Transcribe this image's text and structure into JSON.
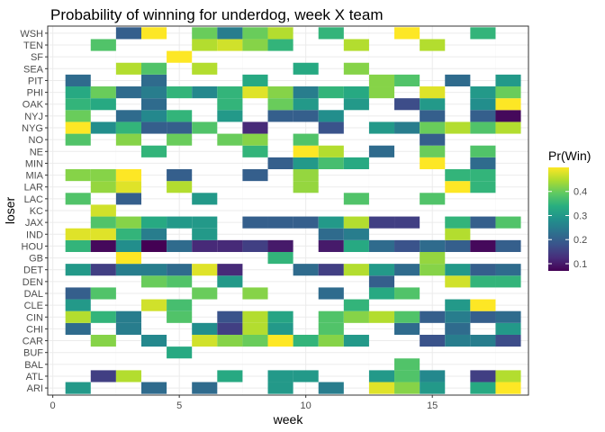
{
  "chart_data": {
    "type": "heatmap",
    "title": "Probability of winning for underdog, week X team",
    "xlabel": "week",
    "ylabel": "loser",
    "xlim": [
      -0.2,
      18.8
    ],
    "x_ticks": [
      0,
      5,
      10,
      15
    ],
    "weeks": [
      1,
      2,
      3,
      4,
      5,
      6,
      7,
      8,
      9,
      10,
      11,
      12,
      13,
      14,
      15,
      16,
      17,
      18
    ],
    "teams_bottom_to_top": [
      "ARI",
      "ATL",
      "BAL",
      "BUF",
      "CAR",
      "CHI",
      "CIN",
      "CLE",
      "DAL",
      "DEN",
      "DET",
      "GB",
      "HOU",
      "IND",
      "JAX",
      "KC",
      "LAC",
      "LAR",
      "MIA",
      "MIN",
      "NE",
      "NO",
      "NYG",
      "NYJ",
      "OAK",
      "PHI",
      "PIT",
      "SEA",
      "SF",
      "TEN",
      "WSH"
    ],
    "fill_scale": {
      "name": "Pr(Win)",
      "min": 0.07,
      "max": 0.5,
      "breaks": [
        0.1,
        0.2,
        0.3,
        0.4
      ],
      "colors": [
        "#440154",
        "#472d7b",
        "#3b528b",
        "#2c728e",
        "#21918c",
        "#28ae80",
        "#5ec962",
        "#addc30",
        "#fde725"
      ]
    },
    "grid": true,
    "legend_position": "right",
    "cells": {
      "WSH": [
        null,
        null,
        0.2,
        0.5,
        null,
        0.4,
        0.25,
        0.4,
        0.45,
        null,
        0.35,
        null,
        null,
        0.5,
        null,
        null,
        0.35,
        null
      ],
      "TEN": [
        null,
        0.38,
        null,
        null,
        null,
        0.45,
        0.47,
        0.42,
        0.35,
        null,
        null,
        0.45,
        null,
        null,
        0.45,
        null,
        null,
        null
      ],
      "SF": [
        null,
        null,
        null,
        null,
        0.5,
        null,
        null,
        null,
        null,
        null,
        null,
        null,
        null,
        null,
        null,
        null,
        null,
        null
      ],
      "SEA": [
        null,
        null,
        0.45,
        0.38,
        null,
        0.45,
        null,
        null,
        null,
        0.33,
        null,
        0.42,
        null,
        null,
        null,
        null,
        null,
        null
      ],
      "PIT": [
        0.22,
        null,
        null,
        0.22,
        null,
        null,
        null,
        0.33,
        null,
        null,
        null,
        null,
        0.42,
        0.38,
        null,
        0.22,
        null,
        0.3
      ],
      "PHI": [
        0.33,
        0.4,
        0.22,
        0.25,
        0.35,
        0.27,
        0.35,
        0.48,
        0.42,
        0.25,
        0.35,
        0.33,
        0.42,
        null,
        0.48,
        null,
        0.3,
        0.4
      ],
      "OAK": [
        0.35,
        0.33,
        null,
        0.22,
        null,
        null,
        0.35,
        null,
        0.4,
        0.3,
        null,
        0.3,
        null,
        0.17,
        0.3,
        null,
        0.28,
        0.5
      ],
      "NYJ": [
        0.4,
        null,
        0.22,
        0.27,
        0.35,
        null,
        0.3,
        null,
        0.2,
        0.2,
        0.28,
        null,
        null,
        null,
        0.2,
        null,
        0.2,
        0.08
      ],
      "NYG": [
        0.5,
        0.28,
        0.35,
        0.2,
        0.2,
        0.38,
        null,
        0.12,
        null,
        null,
        0.18,
        null,
        0.3,
        0.25,
        0.4,
        0.45,
        0.38,
        0.45
      ],
      "NO": [
        0.38,
        null,
        0.42,
        null,
        0.4,
        null,
        0.4,
        0.42,
        null,
        0.38,
        null,
        null,
        null,
        null,
        0.2,
        null,
        null,
        null
      ],
      "NE": [
        null,
        null,
        null,
        0.35,
        null,
        null,
        null,
        0.35,
        null,
        0.5,
        0.45,
        null,
        0.22,
        null,
        0.4,
        null,
        0.38,
        null
      ],
      "MIN": [
        null,
        null,
        null,
        null,
        null,
        null,
        null,
        null,
        0.2,
        0.3,
        0.37,
        0.33,
        null,
        null,
        0.5,
        null,
        0.22,
        null
      ],
      "MIA": [
        0.42,
        0.42,
        0.5,
        null,
        0.2,
        null,
        null,
        0.2,
        null,
        0.43,
        null,
        null,
        null,
        null,
        null,
        0.35,
        0.35,
        null
      ],
      "LAR": [
        null,
        0.43,
        0.48,
        null,
        0.45,
        null,
        null,
        null,
        null,
        0.43,
        null,
        null,
        null,
        null,
        null,
        0.5,
        0.35,
        null
      ],
      "LAC": [
        0.38,
        null,
        0.2,
        null,
        null,
        0.3,
        null,
        null,
        null,
        null,
        null,
        0.38,
        null,
        null,
        0.38,
        null,
        null,
        null
      ],
      "KC": [
        null,
        0.47,
        null,
        null,
        null,
        null,
        null,
        null,
        null,
        null,
        null,
        null,
        null,
        null,
        null,
        null,
        null,
        null
      ],
      "JAX": [
        null,
        0.38,
        0.42,
        0.33,
        0.3,
        0.3,
        null,
        0.2,
        0.2,
        0.2,
        0.3,
        0.45,
        0.15,
        0.15,
        null,
        0.35,
        0.2,
        0.38
      ],
      "IND": [
        0.48,
        0.48,
        0.35,
        0.25,
        null,
        0.3,
        null,
        null,
        null,
        null,
        0.22,
        0.25,
        null,
        null,
        null,
        0.45,
        null,
        null
      ],
      "HOU": [
        0.35,
        0.08,
        0.28,
        0.07,
        0.22,
        0.12,
        0.12,
        0.15,
        0.1,
        null,
        0.1,
        0.33,
        0.22,
        0.18,
        0.22,
        0.2,
        0.08,
        0.2
      ],
      "GB": [
        null,
        null,
        0.5,
        null,
        null,
        null,
        null,
        null,
        0.35,
        null,
        null,
        null,
        null,
        null,
        0.43,
        null,
        null,
        null
      ],
      "DET": [
        0.3,
        0.15,
        0.25,
        0.25,
        0.22,
        0.48,
        0.12,
        null,
        null,
        0.22,
        0.15,
        0.45,
        0.3,
        0.22,
        0.42,
        0.3,
        0.2,
        0.22
      ],
      "DEN": [
        null,
        null,
        null,
        0.4,
        0.38,
        null,
        0.3,
        null,
        null,
        null,
        null,
        null,
        0.2,
        null,
        null,
        0.47,
        0.35,
        0.35
      ],
      "DAL": [
        0.2,
        0.38,
        null,
        null,
        null,
        0.4,
        null,
        0.42,
        null,
        null,
        0.22,
        null,
        0.33,
        0.38,
        null,
        null,
        null,
        null
      ],
      "CLE": [
        0.3,
        null,
        null,
        0.47,
        0.37,
        null,
        null,
        null,
        null,
        null,
        null,
        0.35,
        null,
        null,
        null,
        0.3,
        0.5,
        null
      ],
      "CIN": [
        0.45,
        0.35,
        0.25,
        null,
        0.38,
        null,
        0.18,
        0.45,
        0.32,
        null,
        0.38,
        0.42,
        0.45,
        0.38,
        0.2,
        0.25,
        0.2,
        0.22
      ],
      "CHI": [
        0.22,
        null,
        0.25,
        null,
        null,
        0.28,
        0.15,
        0.45,
        0.3,
        null,
        0.38,
        null,
        null,
        0.22,
        null,
        0.22,
        null,
        0.3
      ],
      "CAR": [
        null,
        0.42,
        null,
        0.27,
        null,
        0.47,
        0.42,
        0.4,
        0.5,
        0.35,
        0.42,
        0.3,
        null,
        null,
        0.18,
        0.25,
        0.25,
        0.17
      ],
      "BUF": [
        null,
        null,
        null,
        null,
        0.33,
        null,
        null,
        null,
        null,
        null,
        null,
        null,
        null,
        null,
        null,
        null,
        null,
        null
      ],
      "BAL": [
        null,
        null,
        null,
        null,
        null,
        null,
        null,
        null,
        null,
        null,
        null,
        null,
        null,
        0.38,
        null,
        null,
        null,
        null
      ],
      "ATL": [
        null,
        0.15,
        0.45,
        null,
        null,
        null,
        0.33,
        null,
        0.3,
        0.3,
        null,
        null,
        0.3,
        0.38,
        0.27,
        null,
        0.15,
        0.45
      ],
      "ARI": [
        0.3,
        null,
        null,
        0.22,
        null,
        0.22,
        null,
        null,
        0.3,
        null,
        0.25,
        null,
        0.48,
        0.42,
        0.3,
        null,
        0.33,
        0.5
      ]
    }
  }
}
